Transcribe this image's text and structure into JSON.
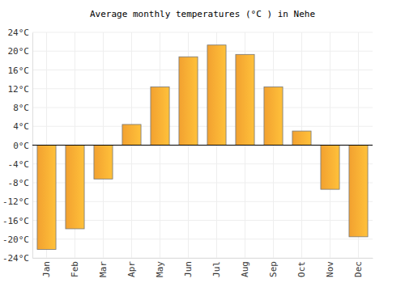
{
  "chart_data": {
    "type": "bar",
    "title": "Average monthly temperatures (°C ) in Nehe",
    "categories": [
      "Jan",
      "Feb",
      "Mar",
      "Apr",
      "May",
      "Jun",
      "Jul",
      "Aug",
      "Sep",
      "Oct",
      "Nov",
      "Dec"
    ],
    "values": [
      -22.2,
      -17.8,
      -7.2,
      4.4,
      12.4,
      18.8,
      21.3,
      19.3,
      12.4,
      3.0,
      -9.4,
      -19.5
    ],
    "color": "#ffaa33",
    "ylim": [
      -24,
      24
    ],
    "yticks": [
      {
        "value": -24,
        "label": "-24°C"
      },
      {
        "value": -20,
        "label": "-20°C"
      },
      {
        "value": -16,
        "label": "-16°C"
      },
      {
        "value": -12,
        "label": "-12°C"
      },
      {
        "value": -8,
        "label": "-8°C"
      },
      {
        "value": -4,
        "label": "-4°C"
      },
      {
        "value": 0,
        "label": "0°C"
      },
      {
        "value": 4,
        "label": "4°C"
      },
      {
        "value": 8,
        "label": "8°C"
      },
      {
        "value": 12,
        "label": "12°C"
      },
      {
        "value": 16,
        "label": "16°C"
      },
      {
        "value": 20,
        "label": "20°C"
      },
      {
        "value": 24,
        "label": "24°C"
      }
    ],
    "grid": true
  }
}
